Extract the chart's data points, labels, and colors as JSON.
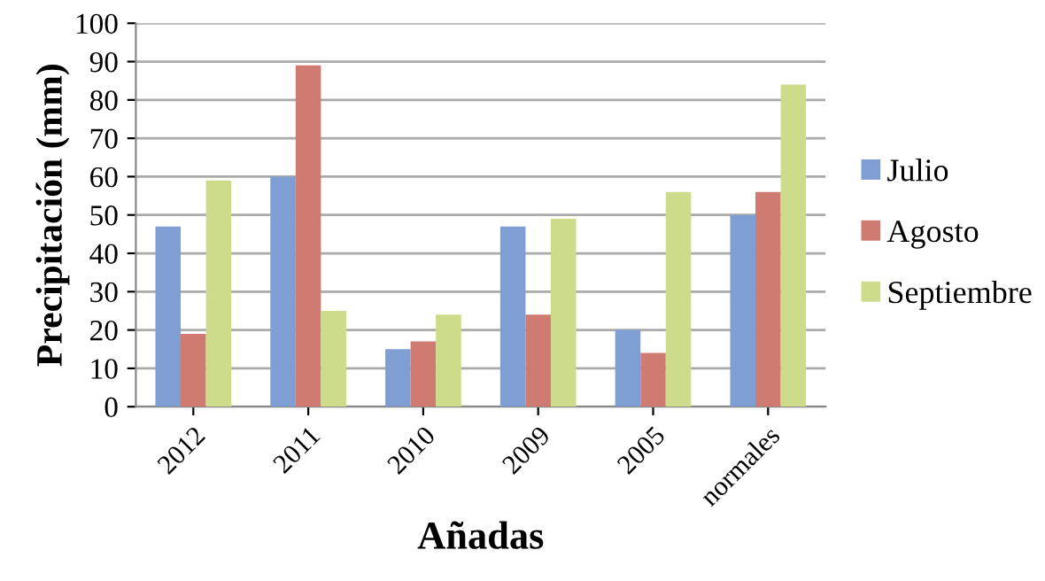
{
  "chart_data": {
    "type": "bar",
    "xlabel": "Añadas",
    "ylabel": "Precipitación (mm)",
    "categories": [
      "2012",
      "2011",
      "2010",
      "2009",
      "2005",
      "normales"
    ],
    "series": [
      {
        "name": "Julio",
        "color": "#7f9fd4",
        "values": [
          47,
          60,
          15,
          47,
          20,
          50
        ]
      },
      {
        "name": "Agosto",
        "color": "#cf7b72",
        "values": [
          19,
          89,
          17,
          24,
          14,
          56
        ]
      },
      {
        "name": "Septiembre",
        "color": "#cddc8a",
        "values": [
          59,
          25,
          24,
          49,
          56,
          84
        ]
      }
    ],
    "ylim": [
      0,
      100
    ],
    "yticks": [
      0,
      10,
      20,
      30,
      40,
      50,
      60,
      70,
      80,
      90,
      100
    ],
    "grid": "y",
    "legend": "right"
  }
}
